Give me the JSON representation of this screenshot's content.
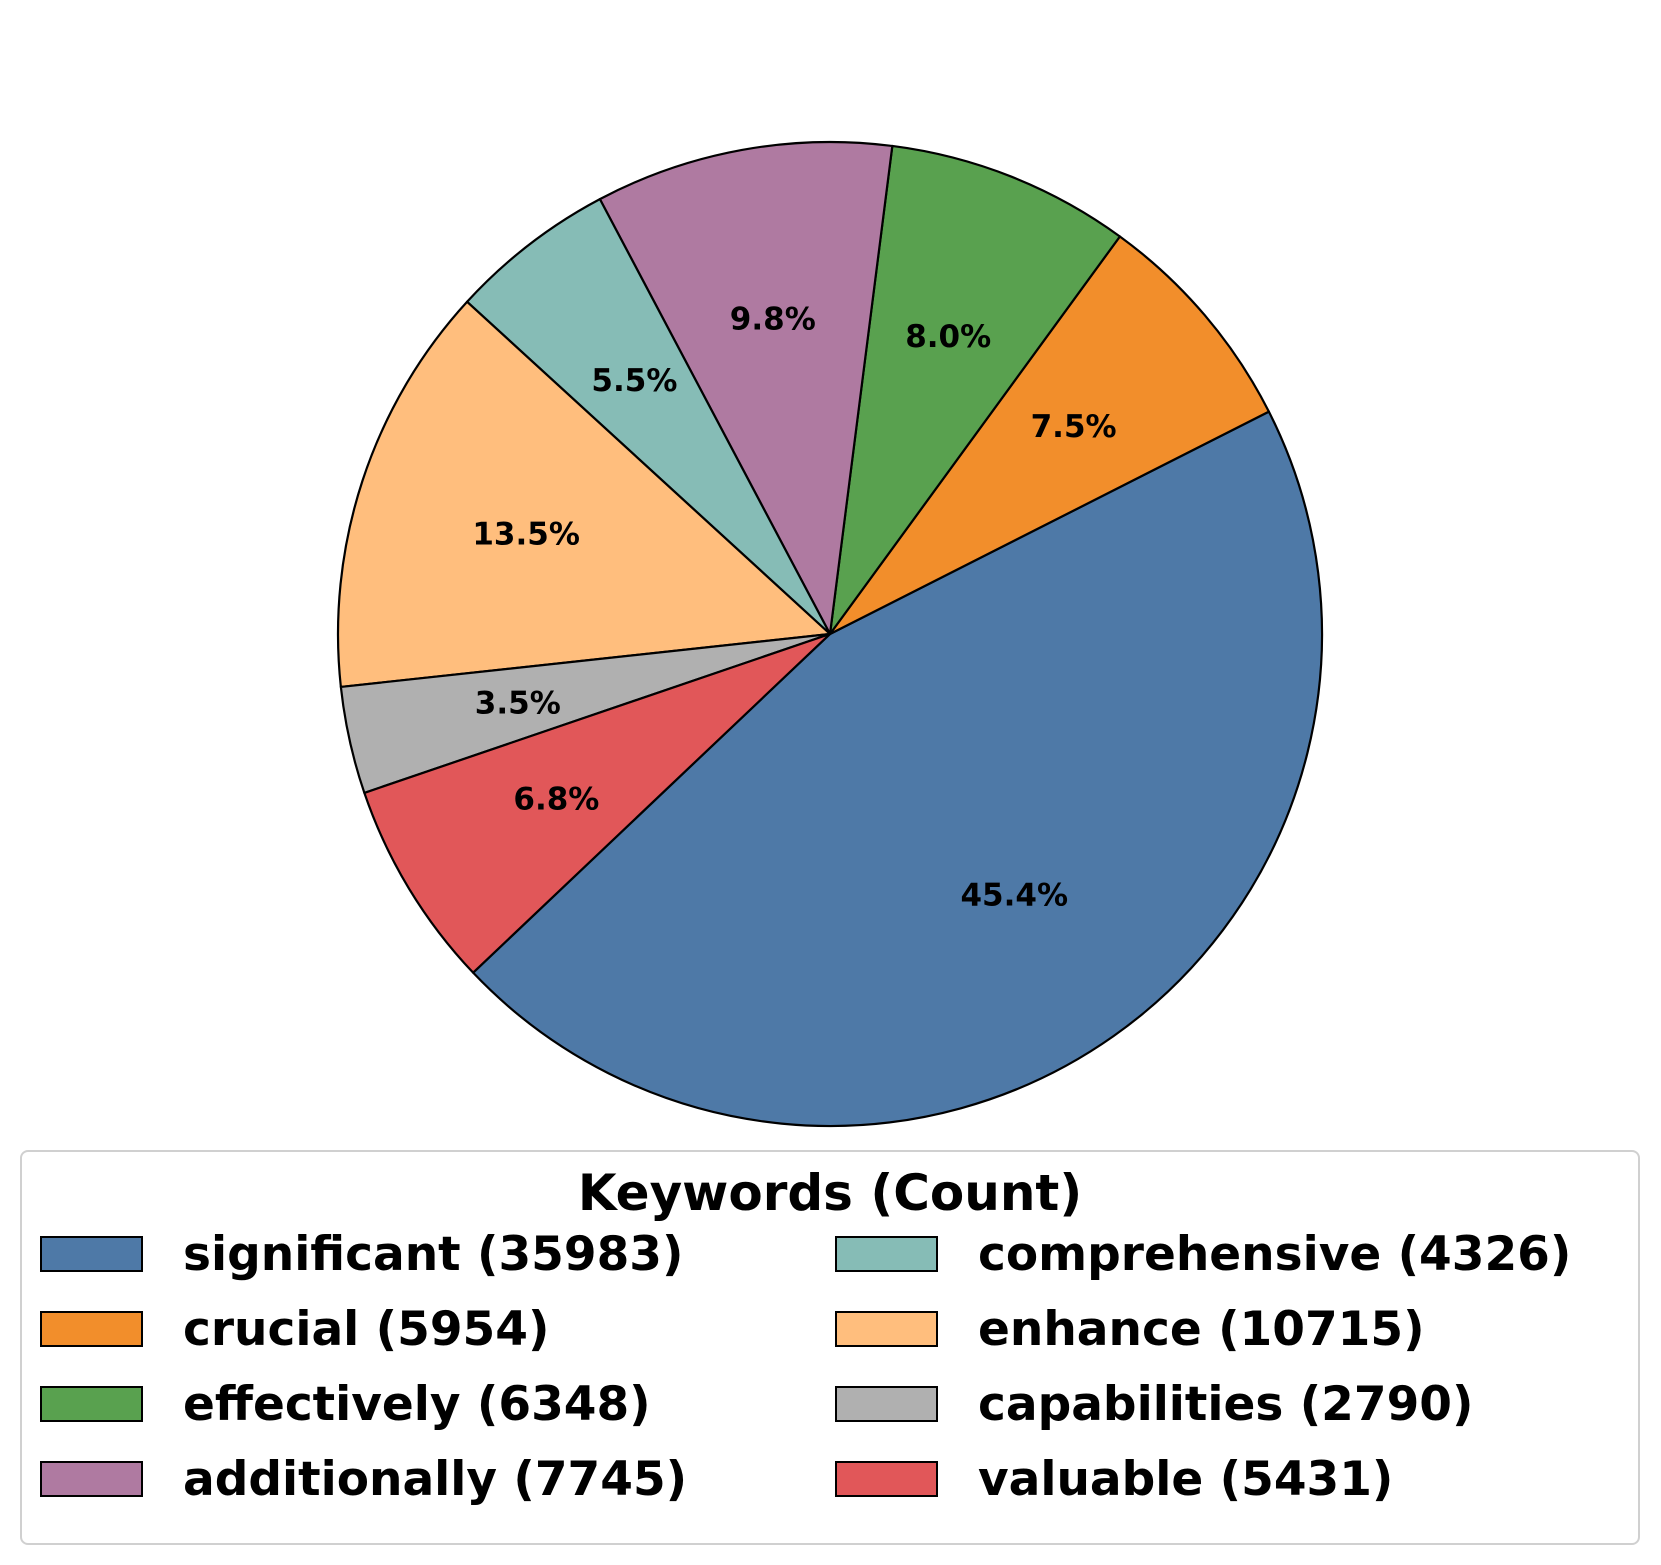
{
  "chart_data": {
    "type": "pie",
    "legend_title": "Keywords (Count)",
    "legend_placement": "bottom",
    "slices": [
      {
        "label": "significant",
        "value": 35983,
        "percent_label": "45.4%",
        "legend": "significant (35983)",
        "color": "#4e79a7"
      },
      {
        "label": "crucial",
        "value": 5954,
        "percent_label": "7.5%",
        "legend": "crucial (5954)",
        "color": "#f28e2b"
      },
      {
        "label": "effectively",
        "value": 6348,
        "percent_label": "8.0%",
        "legend": "effectively (6348)",
        "color": "#59a14f"
      },
      {
        "label": "additionally",
        "value": 7745,
        "percent_label": "9.8%",
        "legend": "additionally (7745)",
        "color": "#af7aa1"
      },
      {
        "label": "comprehensive",
        "value": 4326,
        "percent_label": "5.5%",
        "legend": "comprehensive (4326)",
        "color": "#86bcb6"
      },
      {
        "label": "enhance",
        "value": 10715,
        "percent_label": "13.5%",
        "legend": "enhance (10715)",
        "color": "#ffbe7d"
      },
      {
        "label": "capabilities",
        "value": 2790,
        "percent_label": "3.5%",
        "legend": "capabilities (2790)",
        "color": "#b0b0b0"
      },
      {
        "label": "valuable",
        "value": 5431,
        "percent_label": "6.8%",
        "legend": "valuable (5431)",
        "color": "#e15759"
      }
    ]
  }
}
